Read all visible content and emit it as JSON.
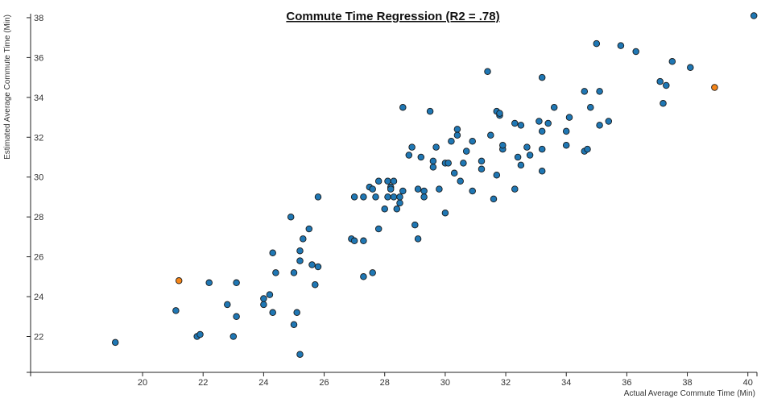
{
  "chart_data": {
    "type": "scatter",
    "title": "Commute Time Regression (R2 = .78)",
    "xlabel": "Actual Average Commute Time (Min)",
    "ylabel": "Estimated Average Commute Time (Min)",
    "xlim": [
      16.3,
      40.3
    ],
    "ylim": [
      20.2,
      38.2
    ],
    "x_ticks": [
      20,
      22,
      24,
      26,
      28,
      30,
      32,
      34,
      36,
      38,
      40
    ],
    "y_ticks": [
      22,
      24,
      26,
      28,
      30,
      32,
      34,
      36,
      38
    ],
    "grid": false,
    "colors": {
      "normal": "#1f77b4",
      "highlight": "#f58518",
      "stroke": "#1a1a1a"
    },
    "points": [
      [
        19.1,
        21.7
      ],
      [
        21.1,
        23.3
      ],
      [
        21.8,
        22.0
      ],
      [
        21.9,
        22.1
      ],
      [
        22.2,
        24.7
      ],
      [
        22.8,
        23.6
      ],
      [
        23.0,
        22.0
      ],
      [
        23.1,
        23.0
      ],
      [
        23.1,
        24.7
      ],
      [
        24.0,
        23.6
      ],
      [
        24.0,
        23.9
      ],
      [
        24.2,
        24.1
      ],
      [
        24.3,
        23.2
      ],
      [
        24.3,
        26.2
      ],
      [
        24.4,
        25.2
      ],
      [
        24.9,
        28.0
      ],
      [
        25.0,
        22.6
      ],
      [
        25.0,
        25.2
      ],
      [
        25.1,
        23.2
      ],
      [
        25.2,
        25.8
      ],
      [
        25.2,
        26.3
      ],
      [
        25.2,
        21.1
      ],
      [
        25.3,
        26.9
      ],
      [
        25.5,
        27.4
      ],
      [
        25.6,
        25.6
      ],
      [
        25.7,
        24.6
      ],
      [
        25.8,
        25.5
      ],
      [
        25.8,
        29.0
      ],
      [
        26.9,
        26.9
      ],
      [
        27.0,
        26.8
      ],
      [
        27.0,
        29.0
      ],
      [
        27.3,
        25.0
      ],
      [
        27.3,
        26.8
      ],
      [
        27.3,
        29.0
      ],
      [
        27.5,
        29.5
      ],
      [
        27.6,
        29.4
      ],
      [
        27.6,
        25.2
      ],
      [
        27.7,
        29.0
      ],
      [
        27.8,
        27.4
      ],
      [
        27.8,
        29.8
      ],
      [
        28.0,
        28.4
      ],
      [
        28.1,
        29.0
      ],
      [
        28.1,
        29.8
      ],
      [
        28.2,
        29.5
      ],
      [
        28.2,
        29.4
      ],
      [
        28.3,
        29.0
      ],
      [
        28.3,
        29.8
      ],
      [
        28.4,
        28.4
      ],
      [
        28.5,
        28.7
      ],
      [
        28.5,
        29.0
      ],
      [
        28.6,
        33.5
      ],
      [
        28.6,
        29.3
      ],
      [
        28.8,
        31.1
      ],
      [
        28.9,
        31.5
      ],
      [
        29.0,
        27.6
      ],
      [
        29.1,
        29.4
      ],
      [
        29.1,
        26.9
      ],
      [
        29.2,
        31.0
      ],
      [
        29.3,
        29.0
      ],
      [
        29.3,
        29.3
      ],
      [
        29.5,
        33.3
      ],
      [
        29.6,
        30.8
      ],
      [
        29.6,
        30.5
      ],
      [
        29.7,
        31.5
      ],
      [
        29.8,
        29.4
      ],
      [
        30.0,
        30.7
      ],
      [
        30.0,
        28.2
      ],
      [
        30.1,
        30.7
      ],
      [
        30.2,
        31.8
      ],
      [
        30.3,
        30.2
      ],
      [
        30.4,
        32.4
      ],
      [
        30.4,
        32.1
      ],
      [
        30.5,
        29.8
      ],
      [
        30.6,
        30.7
      ],
      [
        30.7,
        31.3
      ],
      [
        30.9,
        29.3
      ],
      [
        30.9,
        31.8
      ],
      [
        31.2,
        30.4
      ],
      [
        31.2,
        30.8
      ],
      [
        31.4,
        35.3
      ],
      [
        31.5,
        32.1
      ],
      [
        31.6,
        28.9
      ],
      [
        31.7,
        33.3
      ],
      [
        31.7,
        30.1
      ],
      [
        31.8,
        33.1
      ],
      [
        31.8,
        33.2
      ],
      [
        31.9,
        31.4
      ],
      [
        31.9,
        31.6
      ],
      [
        32.3,
        29.4
      ],
      [
        32.3,
        32.7
      ],
      [
        32.4,
        31.0
      ],
      [
        32.5,
        32.6
      ],
      [
        32.5,
        30.6
      ],
      [
        32.7,
        31.5
      ],
      [
        32.8,
        31.1
      ],
      [
        33.1,
        32.8
      ],
      [
        33.2,
        30.3
      ],
      [
        33.2,
        35.0
      ],
      [
        33.2,
        32.3
      ],
      [
        33.2,
        31.4
      ],
      [
        33.4,
        32.7
      ],
      [
        33.6,
        33.5
      ],
      [
        34.0,
        32.3
      ],
      [
        34.0,
        31.6
      ],
      [
        34.1,
        33.0
      ],
      [
        34.6,
        34.3
      ],
      [
        34.6,
        31.3
      ],
      [
        34.7,
        31.4
      ],
      [
        34.8,
        33.5
      ],
      [
        35.0,
        36.7
      ],
      [
        35.1,
        32.6
      ],
      [
        35.1,
        34.3
      ],
      [
        35.4,
        32.8
      ],
      [
        35.8,
        36.6
      ],
      [
        36.3,
        36.3
      ],
      [
        37.1,
        34.8
      ],
      [
        37.2,
        33.7
      ],
      [
        37.3,
        34.6
      ],
      [
        37.5,
        35.8
      ],
      [
        38.1,
        35.5
      ],
      [
        40.2,
        38.1
      ]
    ],
    "highlighted_points": [
      [
        21.2,
        24.8
      ],
      [
        38.9,
        34.5
      ]
    ]
  }
}
